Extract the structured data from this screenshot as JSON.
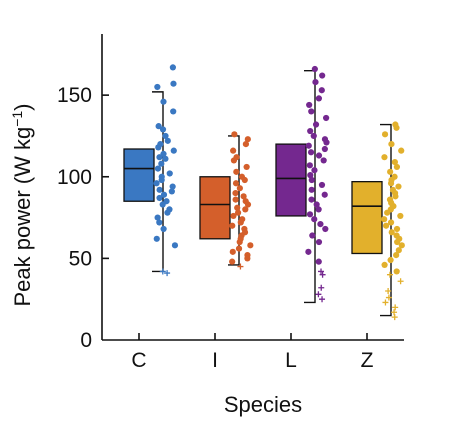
{
  "chart_data": {
    "type": "box",
    "xlabel": "Species",
    "ylabel": "Peak power (W kg",
    "ylabel_superscript": "−1",
    "ylabel_close": ")",
    "ylim": [
      0,
      185
    ],
    "yticks": [
      0,
      50,
      100,
      150
    ],
    "ytick_labels": [
      "0",
      "50",
      "100",
      "150"
    ],
    "categories": [
      "C",
      "I",
      "L",
      "Z"
    ],
    "grid": false,
    "legend": "none",
    "boxes": [
      {
        "category": "C",
        "color": "#3a78c2",
        "whisker_low": 42,
        "q1": 85,
        "median": 105,
        "q3": 117,
        "whisker_high": 152,
        "points": [
          167,
          157,
          155,
          146,
          140,
          131,
          129,
          125,
          122,
          120,
          118,
          116,
          114,
          112,
          111,
          108,
          105,
          102,
          100,
          98,
          96,
          94,
          92,
          91,
          89,
          87,
          85,
          83,
          80,
          78,
          75,
          72,
          68,
          62,
          58
        ],
        "outliers": [
          42,
          41
        ]
      },
      {
        "category": "I",
        "color": "#d45f2b",
        "whisker_low": 46,
        "q1": 62,
        "median": 83,
        "q3": 100,
        "whisker_high": 125,
        "points": [
          126,
          123,
          120,
          116,
          112,
          110,
          106,
          103,
          100,
          98,
          96,
          93,
          90,
          88,
          86,
          85,
          83,
          81,
          80,
          78,
          76,
          74,
          72,
          70,
          68,
          66,
          64,
          62,
          60,
          58,
          56,
          54,
          52,
          50,
          48
        ],
        "outliers": [
          45
        ]
      },
      {
        "category": "L",
        "color": "#74288f",
        "whisker_low": 23,
        "q1": 76,
        "median": 99,
        "q3": 120,
        "whisker_high": 165,
        "points": [
          166,
          162,
          158,
          153,
          148,
          144,
          140,
          136,
          132,
          128,
          125,
          123,
          121,
          119,
          117,
          115,
          113,
          110,
          107,
          104,
          101,
          98,
          95,
          92,
          89,
          86,
          83,
          80,
          77,
          74,
          71,
          68,
          64,
          60,
          54,
          48
        ],
        "outliers": [
          42,
          40,
          32,
          28,
          25
        ]
      },
      {
        "category": "Z",
        "color": "#e2b02c",
        "whisker_low": 15,
        "q1": 53,
        "median": 82,
        "q3": 97,
        "whisker_high": 132,
        "points": [
          132,
          130,
          126,
          120,
          116,
          112,
          109,
          106,
          103,
          100,
          98,
          96,
          94,
          92,
          90,
          88,
          86,
          84,
          82,
          80,
          78,
          76,
          74,
          72,
          70,
          68,
          66,
          64,
          62,
          60,
          58,
          55,
          52,
          49,
          46,
          42
        ],
        "outliers": [
          40,
          36,
          30,
          26,
          23,
          20,
          17,
          14
        ]
      }
    ]
  }
}
